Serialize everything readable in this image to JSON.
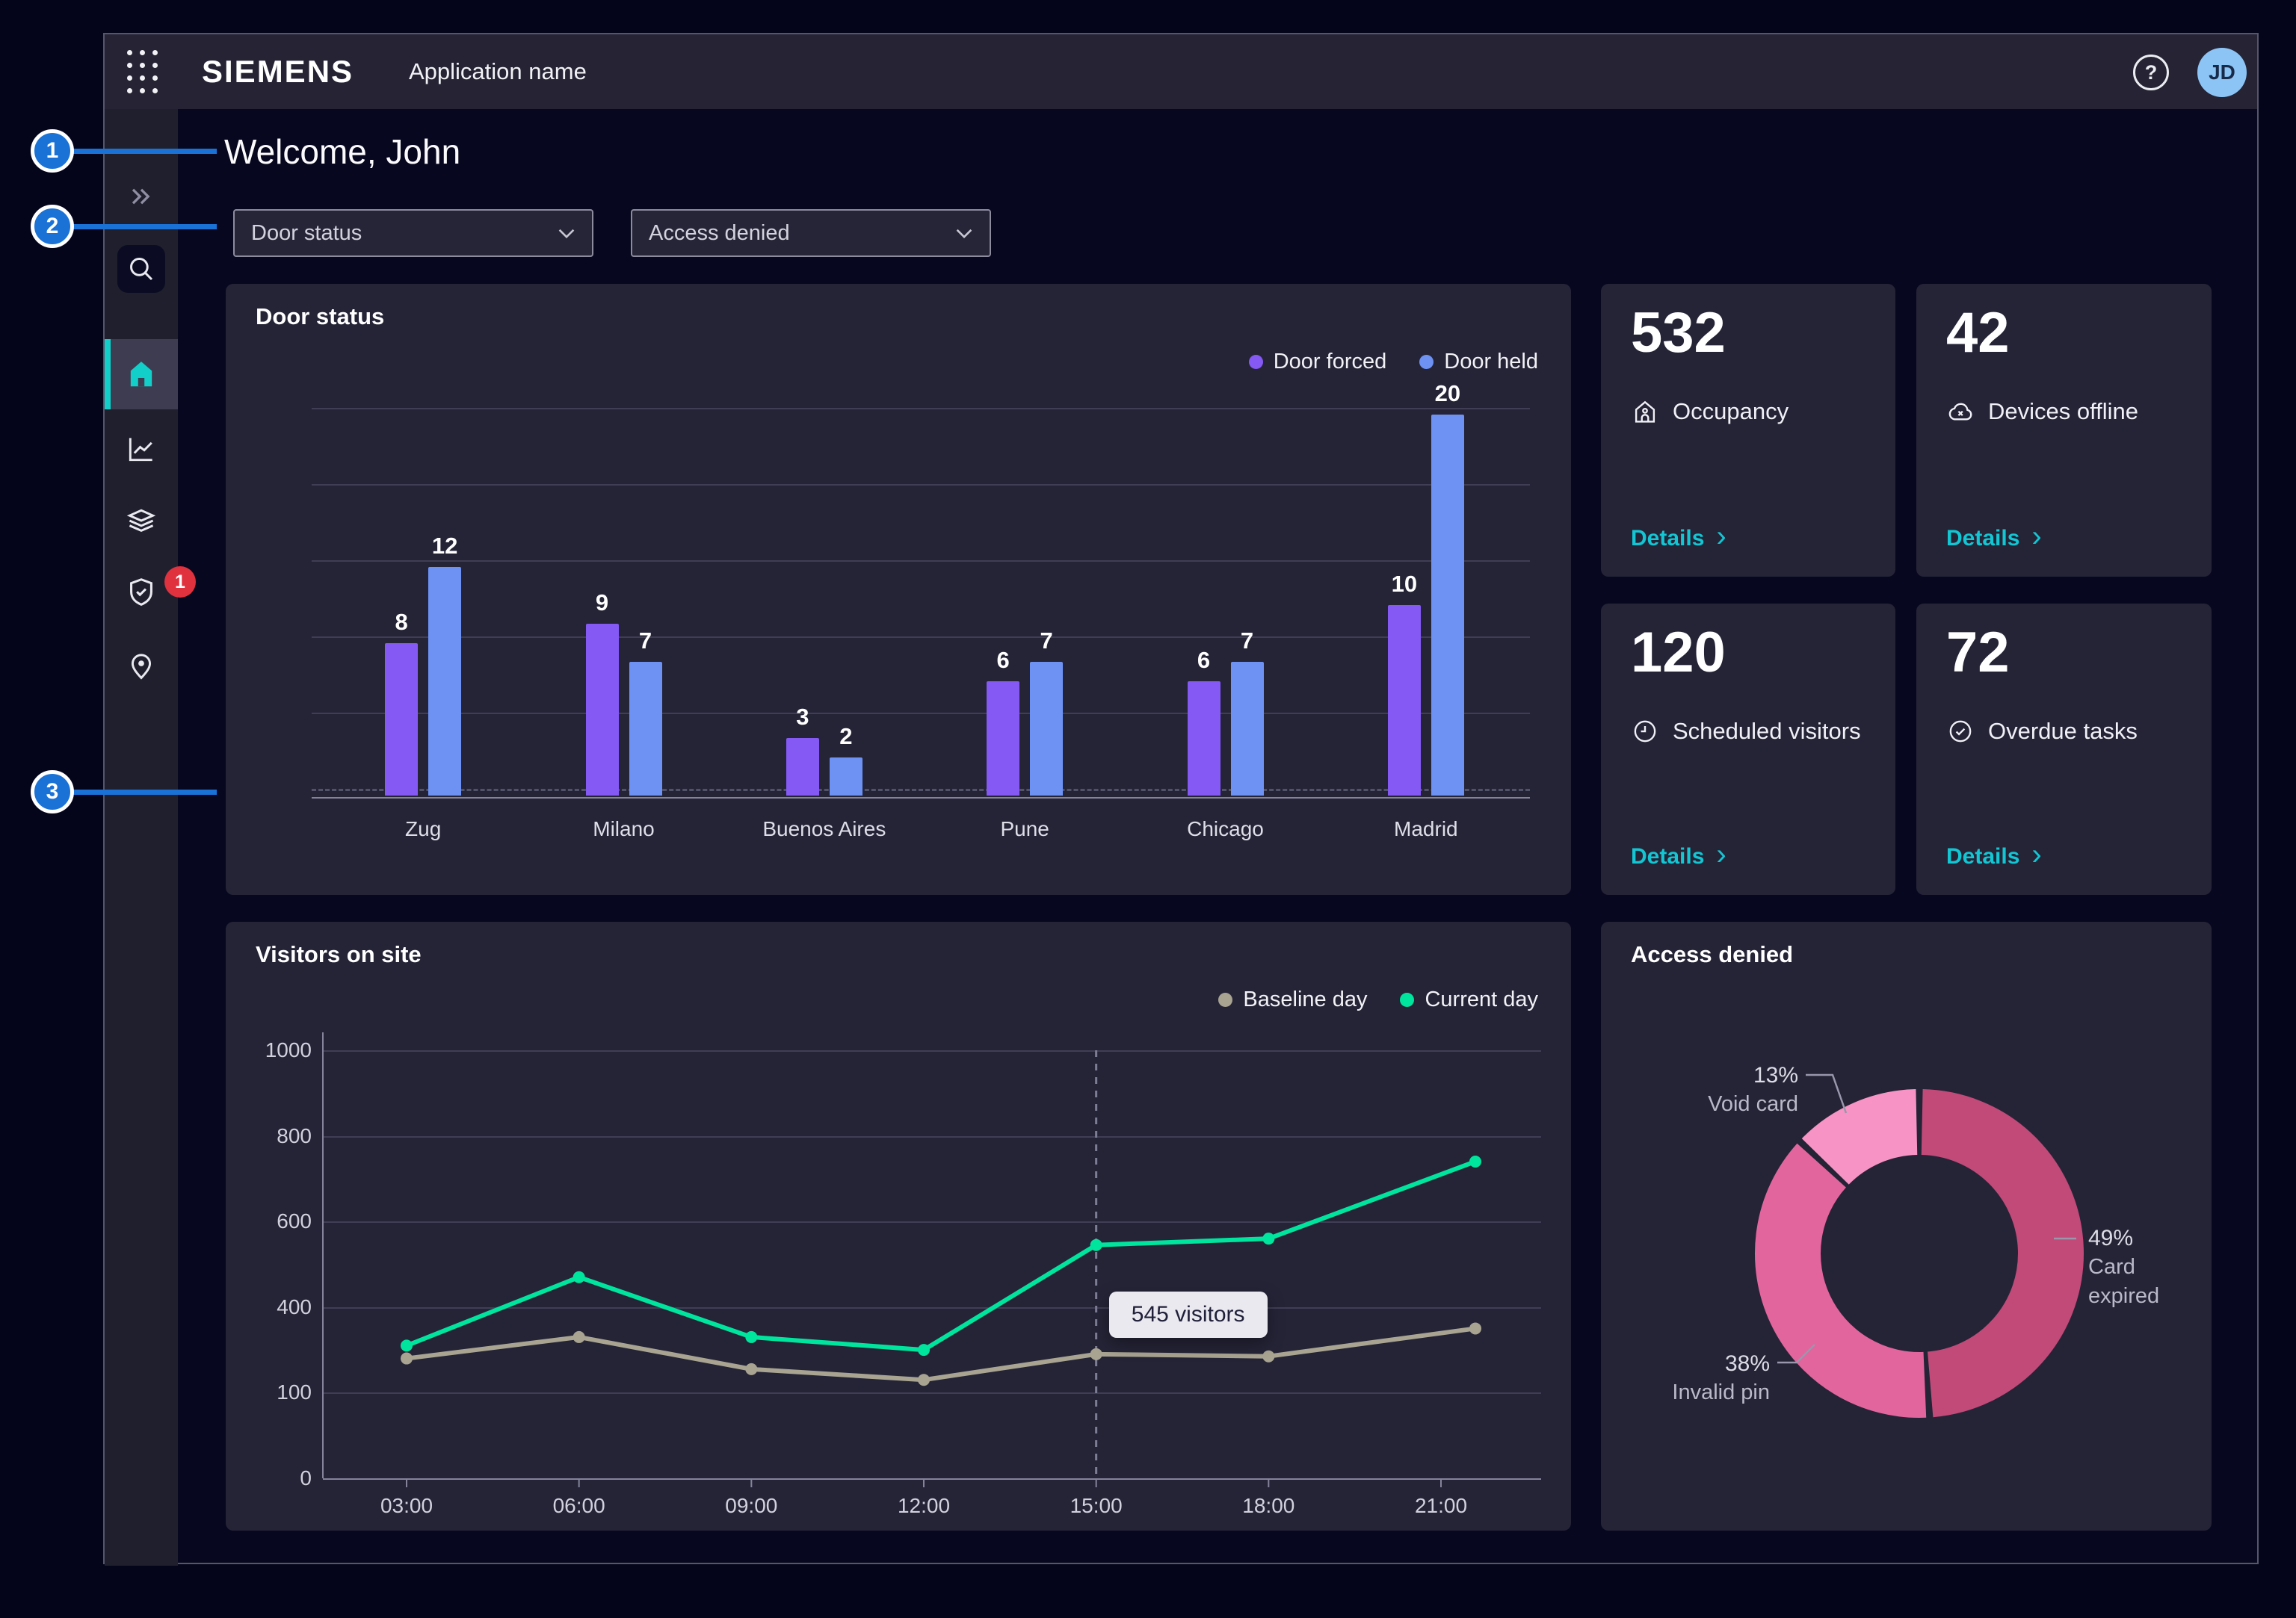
{
  "header": {
    "brand": "SIEMENS",
    "app_name": "Application name",
    "help_glyph": "?",
    "avatar_initials": "JD"
  },
  "sidebar": {
    "items": [
      {
        "icon": "collapse-double-chevron-icon",
        "active": false
      },
      {
        "icon": "search-icon",
        "active": false
      },
      {
        "icon": "home-icon",
        "active": true
      },
      {
        "icon": "analytics-icon",
        "active": false
      },
      {
        "icon": "layers-icon",
        "active": false
      },
      {
        "icon": "shield-check-icon",
        "active": false,
        "badge": "1"
      },
      {
        "icon": "location-pin-icon",
        "active": false
      }
    ],
    "badge_value": "1"
  },
  "callouts": [
    {
      "label": "1"
    },
    {
      "label": "2"
    },
    {
      "label": "3"
    }
  ],
  "main": {
    "welcome": "Welcome, John",
    "filters": [
      {
        "label": "Door status"
      },
      {
        "label": "Access denied"
      }
    ]
  },
  "kpis": [
    {
      "value": "532",
      "label": "Occupancy",
      "icon": "occupancy-house-icon",
      "link": "Details"
    },
    {
      "value": "42",
      "label": "Devices offline",
      "icon": "device-offline-cloud-x-icon",
      "link": "Details"
    },
    {
      "value": "120",
      "label": "Scheduled visitors",
      "icon": "clock-icon",
      "link": "Details"
    },
    {
      "value": "72",
      "label": "Overdue tasks",
      "icon": "check-circle-icon",
      "link": "Details"
    }
  ],
  "colors": {
    "accent_teal": "#12cfc9",
    "link_teal": "#12c6d3",
    "callout_blue": "#1b72d6",
    "badge_red": "#e0313e",
    "card_bg": "#252437",
    "header_bg": "#252334",
    "sidebar_bg": "#201f2d",
    "window_bg": "#07071f",
    "page_bg": "#04051b"
  },
  "chart_data": [
    {
      "id": "door-status",
      "type": "bar",
      "title": "Door status",
      "categories": [
        "Zug",
        "Milano",
        "Buenos Aires",
        "Pune",
        "Chicago",
        "Madrid"
      ],
      "series": [
        {
          "name": "Door forced",
          "color": "#8459f4",
          "values": [
            8,
            9,
            3,
            6,
            6,
            10
          ]
        },
        {
          "name": "Door held",
          "color": "#6d92f3",
          "values": [
            12,
            7,
            2,
            7,
            7,
            20
          ]
        }
      ],
      "ylim": [
        0,
        20
      ],
      "grid": true,
      "legend_position": "top-right"
    },
    {
      "id": "visitors-on-site",
      "type": "line",
      "title": "Visitors on site",
      "x": [
        "03:00",
        "06:00",
        "09:00",
        "12:00",
        "15:00",
        "18:00",
        "21:00"
      ],
      "y_tick_labels": [
        "1000",
        "800",
        "600",
        "400",
        "100",
        "0"
      ],
      "ylim": [
        0,
        1000
      ],
      "series": [
        {
          "name": "Baseline day",
          "color": "#a9a491",
          "values": [
            280,
            330,
            255,
            230,
            290,
            285,
            350
          ]
        },
        {
          "name": "Current day",
          "color": "#00e59d",
          "values": [
            310,
            470,
            330,
            300,
            545,
            560,
            740
          ]
        }
      ],
      "tooltip": {
        "text": "545 visitors",
        "at_x": "15:00"
      },
      "marker_line_x": "15:00",
      "legend_position": "top-right",
      "grid": true
    },
    {
      "id": "access-denied",
      "type": "donut",
      "title": "Access denied",
      "slices": [
        {
          "label": "Card expired",
          "pct": 49,
          "color": "#c14a79"
        },
        {
          "label": "Invalid pin",
          "pct": 38,
          "color": "#e3659d"
        },
        {
          "label": "Void card",
          "pct": 13,
          "color": "#f794c5"
        }
      ]
    }
  ]
}
